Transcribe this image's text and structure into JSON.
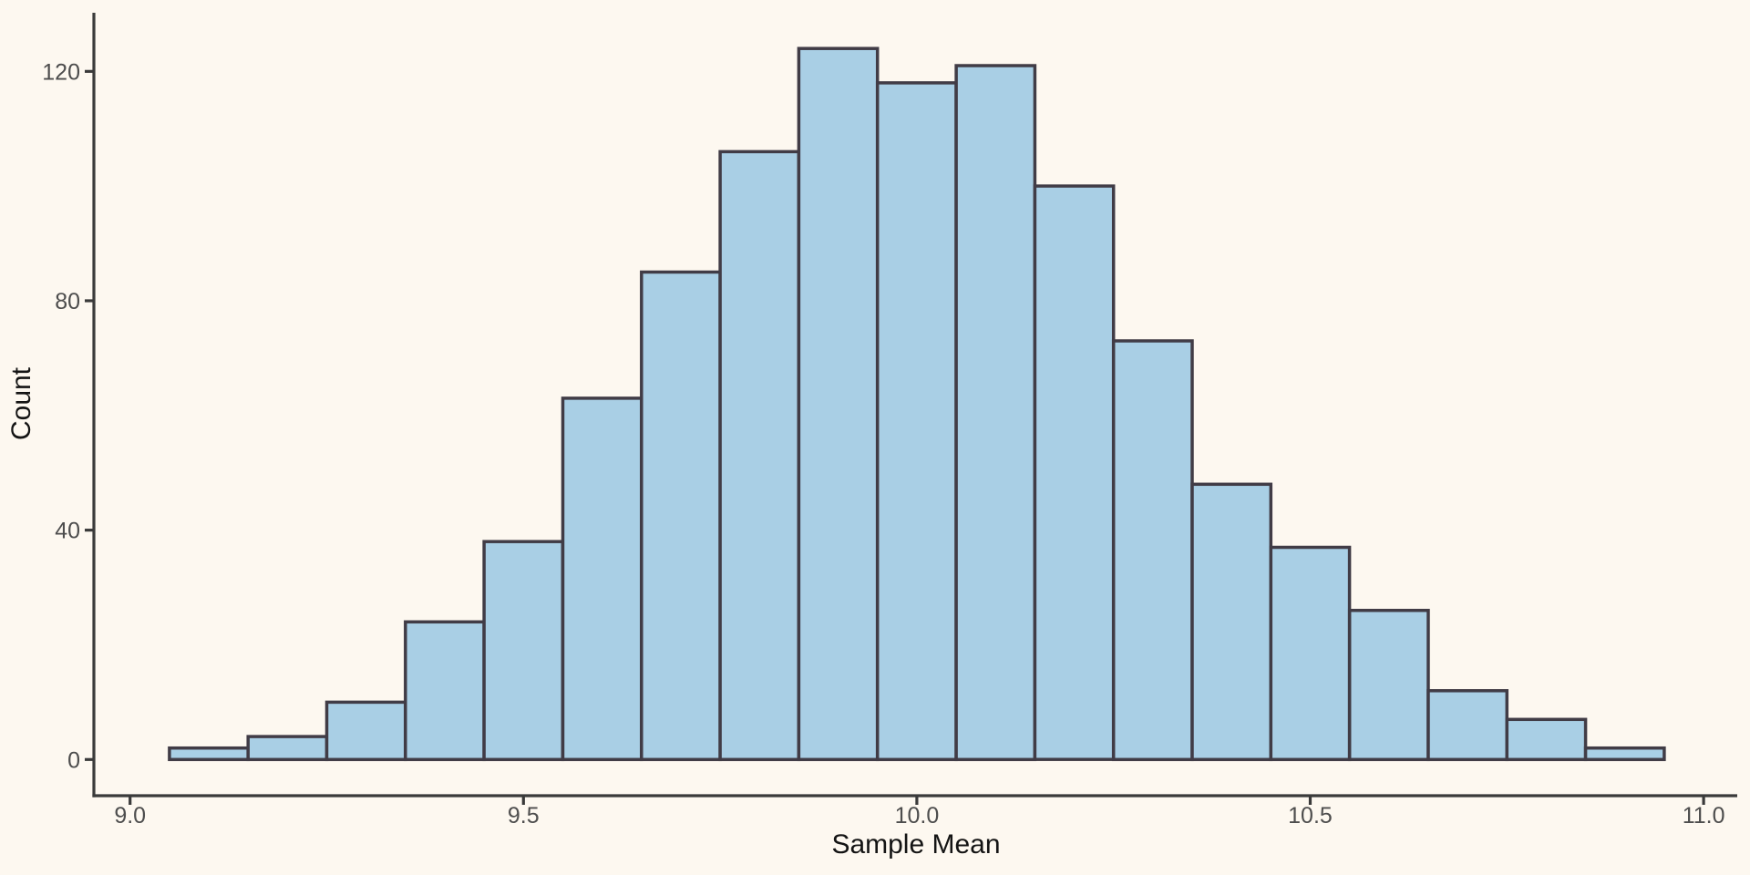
{
  "chart_data": {
    "type": "bar",
    "subtype": "histogram",
    "title": "",
    "xlabel": "Sample Mean",
    "ylabel": "Count",
    "bin_start": 9.05,
    "bin_width": 0.1,
    "bin_centers": [
      9.1,
      9.2,
      9.3,
      9.4,
      9.5,
      9.6,
      9.7,
      9.8,
      9.9,
      10.0,
      10.1,
      10.2,
      10.3,
      10.4,
      10.5,
      10.6,
      10.7,
      10.8,
      10.9
    ],
    "values": [
      2,
      4,
      10,
      24,
      38,
      63,
      85,
      106,
      124,
      118,
      121,
      100,
      73,
      48,
      37,
      26,
      12,
      7,
      2
    ],
    "total_count": 1000,
    "x_ticks": [
      9.0,
      9.5,
      10.0,
      10.5,
      11.0
    ],
    "x_tick_labels": [
      "9.0",
      "9.5",
      "10.0",
      "10.5",
      "11.0"
    ],
    "y_ticks": [
      0,
      40,
      80,
      120
    ],
    "y_tick_labels": [
      "0",
      "40",
      "80",
      "120"
    ],
    "xlim": [
      8.954,
      11.043
    ],
    "ylim": [
      0,
      130.6
    ],
    "grid": "off",
    "legend": "none",
    "colors": {
      "background": "#FDF8F0",
      "bar_fill": "#A9CFE5",
      "bar_stroke": "#413C46",
      "axis_line": "#3A3A3A",
      "tick_label": "#4D4D4D",
      "axis_title": "#141414"
    }
  }
}
